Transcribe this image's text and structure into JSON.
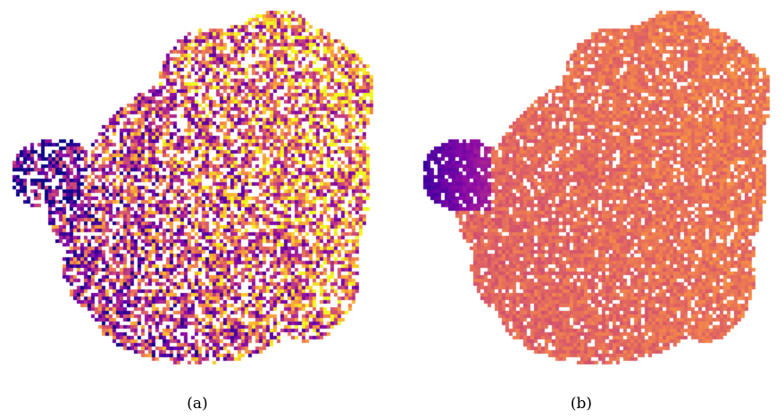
{
  "figure": {
    "panels": [
      {
        "id": "a",
        "caption": "(a)",
        "colormap": "plasma",
        "style": "noisy"
      },
      {
        "id": "b",
        "caption": "(b)",
        "colormap": "plasma",
        "style": "smooth"
      }
    ],
    "background": "#ffffff"
  }
}
